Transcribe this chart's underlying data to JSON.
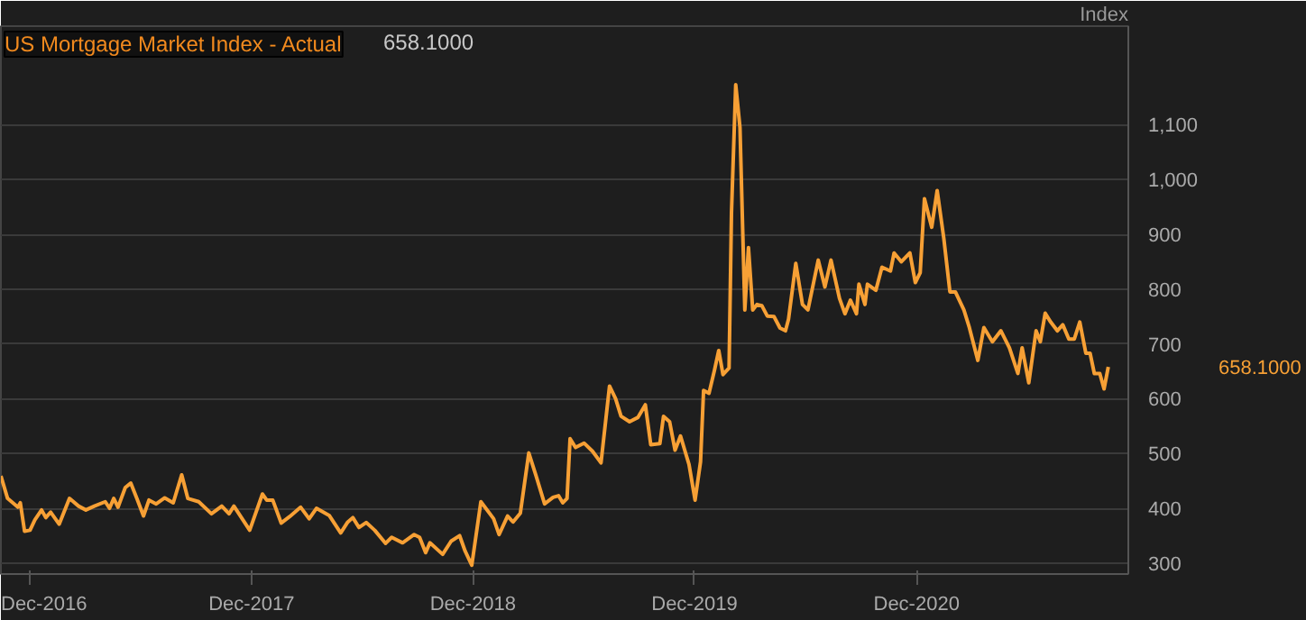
{
  "chart_data": {
    "type": "line",
    "title": "US Mortgage Market Index - Actual",
    "ylabel": "Index",
    "annotations": [
      "658.1000",
      "658.1000"
    ],
    "xlim": [
      "2016-10-14",
      "2021-11-15"
    ],
    "ylim": [
      280,
      1280
    ],
    "xticks": [
      {
        "value": "2016-12-01",
        "label": "Dec-2016"
      },
      {
        "value": "2017-12-01",
        "label": "Dec-2017"
      },
      {
        "value": "2018-12-01",
        "label": "Dec-2018"
      },
      {
        "value": "2019-12-01",
        "label": "Dec-2019"
      },
      {
        "value": "2020-12-01",
        "label": "Dec-2020"
      }
    ],
    "yticks": [
      300,
      400,
      500,
      600,
      700,
      800,
      900,
      {
        "value": 1000,
        "label": "1,000"
      },
      {
        "value": 1100,
        "label": "1,100"
      }
    ],
    "grid": "y",
    "marker": "none",
    "line_style": "solid",
    "series": [
      {
        "color": "#f7a035",
        "x": [
          "2016-10-14",
          "2016-10-25",
          "2016-11-11",
          "2016-11-15",
          "2016-11-22",
          "2016-12-01",
          "2016-12-09",
          "2016-12-20",
          "2016-12-27",
          "2017-01-04",
          "2017-01-18",
          "2017-02-04",
          "2017-02-19",
          "2017-03-03",
          "2017-03-17",
          "2017-04-04",
          "2017-04-11",
          "2017-04-18",
          "2017-04-25",
          "2017-05-07",
          "2017-05-16",
          "2017-05-26",
          "2017-06-06",
          "2017-06-15",
          "2017-06-27",
          "2017-07-11",
          "2017-07-25",
          "2017-08-08",
          "2017-08-18",
          "2017-09-05",
          "2017-09-26",
          "2017-10-13",
          "2017-10-25",
          "2017-11-02",
          "2017-11-28",
          "2017-12-19",
          "2017-12-26",
          "2018-01-05",
          "2018-01-19",
          "2018-02-02",
          "2018-02-20",
          "2018-03-06",
          "2018-03-18",
          "2018-04-08",
          "2018-04-27",
          "2018-05-08",
          "2018-05-17",
          "2018-05-27",
          "2018-06-08",
          "2018-06-22",
          "2018-07-10",
          "2018-07-20",
          "2018-08-07",
          "2018-08-26",
          "2018-09-04",
          "2018-09-14",
          "2018-09-21",
          "2018-10-12",
          "2018-10-26",
          "2018-11-09",
          "2018-11-18",
          "2018-11-29",
          "2018-12-14",
          "2019-01-04",
          "2019-01-13",
          "2019-01-27",
          "2019-02-05",
          "2019-02-17",
          "2019-03-03",
          "2019-03-15",
          "2019-03-29",
          "2019-04-12",
          "2019-04-21",
          "2019-04-28",
          "2019-05-05",
          "2019-05-10",
          "2019-05-19",
          "2019-06-02",
          "2019-06-16",
          "2019-06-30",
          "2019-07-14",
          "2019-07-24",
          "2019-08-02",
          "2019-08-16",
          "2019-08-30",
          "2019-09-11",
          "2019-09-20",
          "2019-10-05",
          "2019-10-11",
          "2019-10-21",
          "2019-10-30",
          "2019-11-08",
          "2019-11-22",
          "2019-12-02",
          "2019-12-11",
          "2019-12-16",
          "2019-12-25",
          "2020-01-03",
          "2020-01-10",
          "2020-01-17",
          "2020-01-27",
          "2020-01-31",
          "2020-02-07",
          "2020-02-14",
          "2020-02-22",
          "2020-02-28",
          "2020-03-06",
          "2020-03-13",
          "2020-03-21",
          "2020-03-30",
          "2020-04-10",
          "2020-04-20",
          "2020-04-29",
          "2020-05-04",
          "2020-05-16",
          "2020-05-27",
          "2020-06-05",
          "2020-06-22",
          "2020-07-03",
          "2020-07-13",
          "2020-07-27",
          "2020-08-05",
          "2020-08-14",
          "2020-08-24",
          "2020-08-28",
          "2020-09-07",
          "2020-09-11",
          "2020-09-25",
          "2020-10-05",
          "2020-10-19",
          "2020-10-25",
          "2020-11-06",
          "2020-11-20",
          "2020-11-29",
          "2020-12-07",
          "2020-12-14",
          "2020-12-26",
          "2021-01-04",
          "2021-01-15",
          "2021-01-25",
          "2021-02-03",
          "2021-02-17",
          "2021-02-26",
          "2021-03-12",
          "2021-03-22",
          "2021-04-05",
          "2021-04-19",
          "2021-05-03",
          "2021-05-17",
          "2021-05-24",
          "2021-06-04",
          "2021-06-16",
          "2021-06-23",
          "2021-07-01",
          "2021-07-10",
          "2021-07-21",
          "2021-07-30",
          "2021-08-09",
          "2021-08-18",
          "2021-08-27",
          "2021-09-06",
          "2021-09-13",
          "2021-09-20",
          "2021-09-29",
          "2021-10-06",
          "2021-10-13"
        ],
        "values": [
          459,
          418,
          402,
          410,
          358,
          360,
          379,
          397,
          383,
          393,
          371,
          418,
          404,
          397,
          404,
          412,
          400,
          418,
          402,
          438,
          446,
          418,
          386,
          415,
          408,
          419,
          410,
          461,
          418,
          412,
          390,
          404,
          390,
          404,
          360,
          426,
          415,
          415,
          373,
          385,
          402,
          381,
          400,
          387,
          355,
          374,
          383,
          365,
          374,
          360,
          336,
          347,
          337,
          352,
          347,
          319,
          337,
          316,
          340,
          350,
          322,
          296,
          412,
          381,
          352,
          386,
          375,
          391,
          501,
          459,
          408,
          420,
          423,
          410,
          418,
          527,
          511,
          519,
          504,
          483,
          623,
          600,
          568,
          558,
          566,
          589,
          516,
          518,
          568,
          558,
          506,
          532,
          480,
          415,
          485,
          615,
          610,
          652,
          688,
          644,
          656,
          939,
          1173,
          1095,
          762,
          876,
          762,
          772,
          770,
          751,
          750,
          729,
          724,
          745,
          847,
          772,
          762,
          853,
          804,
          853,
          783,
          755,
          780,
          755,
          809,
          772,
          809,
          798,
          840,
          833,
          866,
          850,
          866,
          812,
          830,
          965,
          913,
          980,
          892,
          795,
          795,
          762,
          730,
          670,
          730,
          704,
          724,
          693,
          646,
          693,
          629,
          724,
          704,
          756,
          740,
          724,
          735,
          709,
          709,
          740,
          683,
          683,
          646,
          646,
          618,
          658.1
        ]
      }
    ]
  }
}
